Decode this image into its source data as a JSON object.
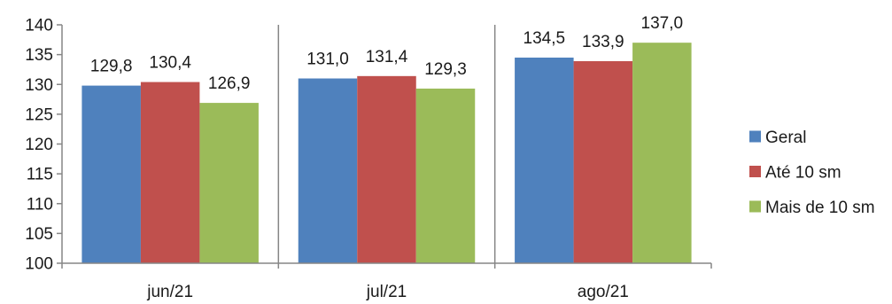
{
  "chart_data": {
    "type": "bar",
    "title": "",
    "xlabel": "",
    "ylabel": "",
    "categories": [
      "jun/21",
      "jul/21",
      "ago/21"
    ],
    "series": [
      {
        "name": "Geral",
        "color": "#4F81BD",
        "values": [
          129.8,
          131.0,
          134.5
        ],
        "labels": [
          "129,8",
          "131,0",
          "134,5"
        ]
      },
      {
        "name": "Até 10 sm",
        "color": "#C0504D",
        "values": [
          130.4,
          131.4,
          133.9
        ],
        "labels": [
          "130,4",
          "131,4",
          "133,9"
        ]
      },
      {
        "name": "Mais de 10 sm",
        "color": "#9BBB59",
        "values": [
          126.9,
          129.3,
          137.0
        ],
        "labels": [
          "126,9",
          "129,3",
          "137,0"
        ]
      }
    ],
    "ylim": [
      100,
      140
    ],
    "yticks": [
      100,
      105,
      110,
      115,
      120,
      125,
      130,
      135,
      140
    ],
    "ytick_labels": [
      "100",
      "105",
      "110",
      "115",
      "120",
      "125",
      "130",
      "135",
      "140"
    ],
    "grid": false,
    "category_separators": true,
    "legend_position": "right"
  }
}
